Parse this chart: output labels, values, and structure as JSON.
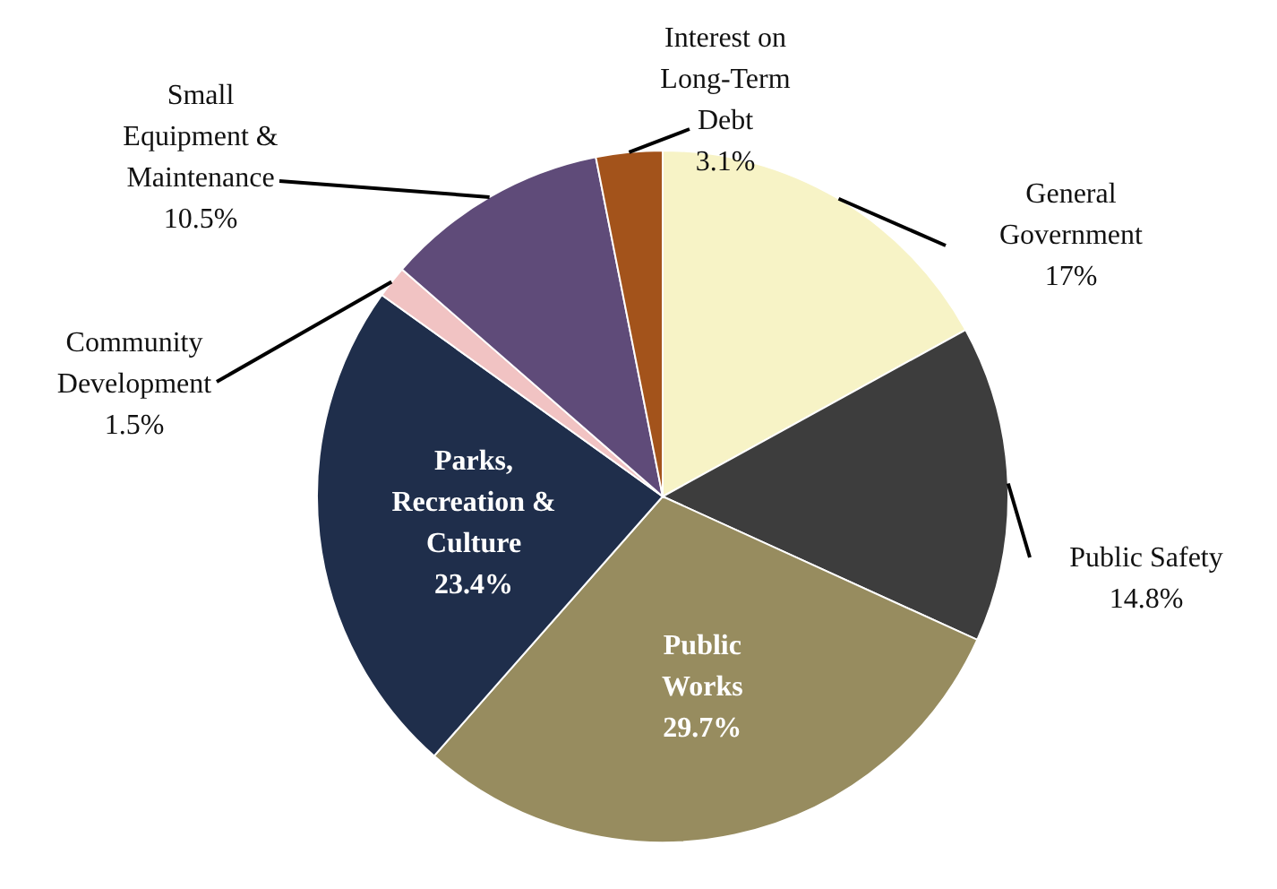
{
  "chart_data": {
    "type": "pie",
    "categories": [
      "General\nGovernment",
      "Public Safety",
      "Public\nWorks",
      "Parks,\nRecreation &\nCulture",
      "Community\nDevelopment",
      "Small\nEquipment &\nMaintenance",
      "Interest on\nLong-Term\nDebt"
    ],
    "values": [
      17,
      14.8,
      29.7,
      23.4,
      1.5,
      10.5,
      3.1
    ],
    "value_labels": [
      "17%",
      "14.8%",
      "29.7%",
      "23.4%",
      "1.5%",
      "10.5%",
      "3.1%"
    ],
    "colors": [
      "#f7f3c6",
      "#3d3d3d",
      "#978c5f",
      "#1f2e4b",
      "#f1c3c3",
      "#5f4b79",
      "#a3531b"
    ]
  }
}
